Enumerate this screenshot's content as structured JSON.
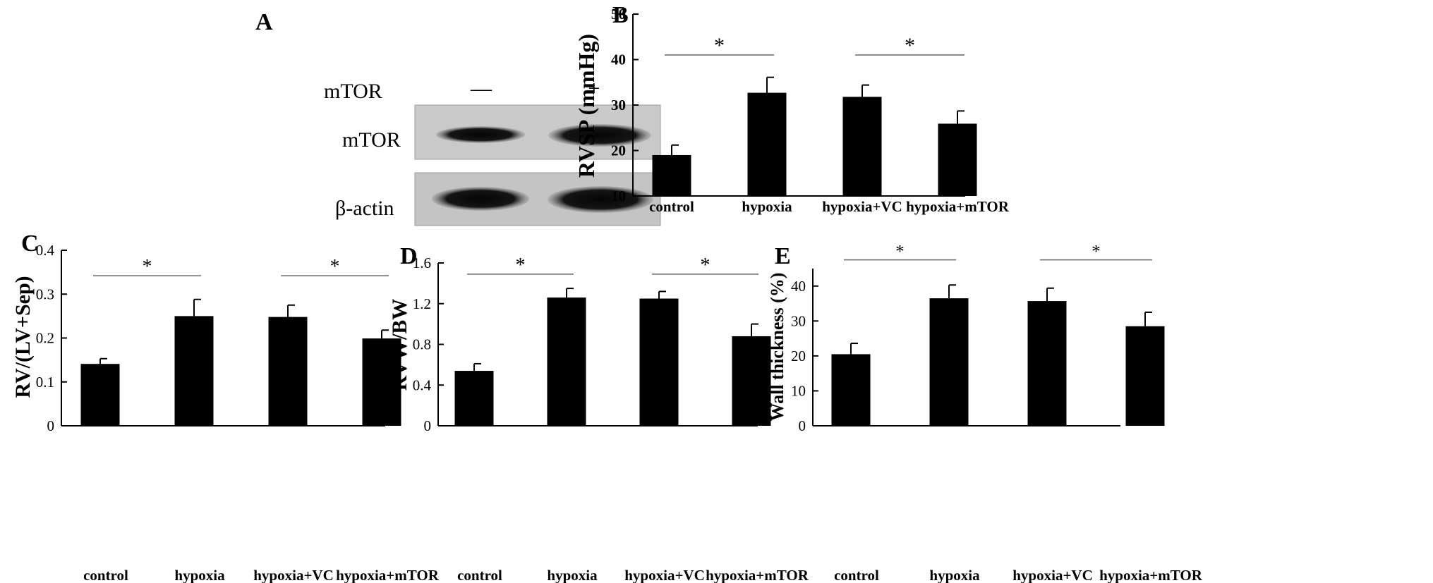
{
  "panels": {
    "A": {
      "letter": "A",
      "header_label": "mTOR",
      "lane_labels": [
        "—",
        "+"
      ],
      "rows": [
        "mTOR",
        "β-actin"
      ]
    }
  },
  "chart_data": [
    {
      "id": "B",
      "letter": "B",
      "type": "bar",
      "categories": [
        "control",
        "hypoxia",
        "hypoxia+VC",
        "hypoxia+mTOR"
      ],
      "values": [
        19,
        32.7,
        31.8,
        25.9
      ],
      "errors": [
        2.2,
        3.4,
        2.6,
        2.8
      ],
      "ylabel": "RVSP (mmHg)",
      "ylim": [
        10,
        50
      ],
      "yticks": [
        10,
        20,
        30,
        40,
        50
      ],
      "ytick_labels": [
        "10",
        "20",
        "30",
        "40",
        "50"
      ],
      "significance": [
        {
          "from": 0,
          "to": 1,
          "y": 41,
          "label": "*"
        },
        {
          "from": 2,
          "to": 3,
          "y": 41,
          "label": "*"
        }
      ]
    },
    {
      "id": "C",
      "letter": "C",
      "type": "bar",
      "categories": [
        "control",
        "hypoxia",
        "hypoxia+VC",
        "hypoxia+mTOR"
      ],
      "values": [
        0.141,
        0.25,
        0.248,
        0.199
      ],
      "errors": [
        0.012,
        0.038,
        0.027,
        0.019
      ],
      "ylabel": "RV/(LV+Sep)",
      "ylim": [
        0,
        0.4
      ],
      "yticks": [
        0,
        0.1,
        0.2,
        0.3,
        0.4
      ],
      "ytick_labels": [
        "0",
        "0.1",
        "0.2",
        "0.3",
        "0.4"
      ],
      "significance": [
        {
          "from": 0,
          "to": 1,
          "y": 0.342,
          "label": "*"
        },
        {
          "from": 2,
          "to": 3,
          "y": 0.342,
          "label": "*"
        }
      ]
    },
    {
      "id": "D",
      "letter": "D",
      "type": "bar",
      "categories": [
        "control",
        "hypoxia",
        "hypoxia+VC",
        "hypoxia+mTOR"
      ],
      "values": [
        0.54,
        1.26,
        1.25,
        0.88
      ],
      "errors": [
        0.07,
        0.09,
        0.07,
        0.12
      ],
      "ylabel": "RVW/BW",
      "ylim": [
        0,
        1.6
      ],
      "yticks": [
        0,
        0.4,
        0.8,
        1.2,
        1.6
      ],
      "ytick_labels": [
        "0",
        "0.4",
        "0.8",
        "1.2",
        "1.6"
      ],
      "significance": [
        {
          "from": 0,
          "to": 1,
          "y": 1.49,
          "label": "*"
        },
        {
          "from": 2,
          "to": 3,
          "y": 1.49,
          "label": "*"
        }
      ]
    },
    {
      "id": "E",
      "letter": "E",
      "type": "bar",
      "categories": [
        "control",
        "hypoxia",
        "hypoxia+VC",
        "hypoxia+mTOR"
      ],
      "values": [
        20.5,
        36.5,
        35.7,
        28.5
      ],
      "errors": [
        3.1,
        3.8,
        3.7,
        4.0
      ],
      "ylabel": "Wall thickness (%)",
      "ylim": [
        0,
        45
      ],
      "yticks": [
        0,
        10,
        20,
        30,
        40
      ],
      "ytick_labels": [
        "0",
        "10",
        "20",
        "30",
        "40"
      ],
      "significance": [
        {
          "from": 0,
          "to": 1,
          "y": 47.5,
          "label": "*"
        },
        {
          "from": 2,
          "to": 3,
          "y": 47.5,
          "label": "*"
        }
      ]
    }
  ]
}
